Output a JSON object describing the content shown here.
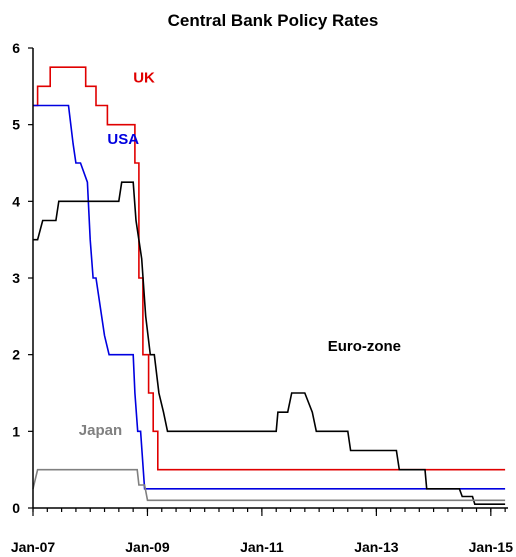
{
  "chart_data": {
    "type": "line",
    "title": "Central Bank Policy Rates",
    "xlabel": "",
    "ylabel": "",
    "xlim": [
      2007.0,
      2015.3
    ],
    "ylim": [
      0,
      6
    ],
    "x_ticks": [
      2007,
      2009,
      2011,
      2013,
      2015
    ],
    "x_tick_labels": [
      "Jan-07",
      "Jan-09",
      "Jan-11",
      "Jan-13",
      "Jan-15"
    ],
    "y_ticks": [
      0,
      1,
      2,
      3,
      4,
      5,
      6
    ],
    "y_tick_labels": [
      "0",
      "1",
      "2",
      "3",
      "4",
      "5",
      "6"
    ],
    "grid": false,
    "legend": "none (series labeled directly on chart)",
    "series": [
      {
        "name": "UK",
        "color": "#e00000",
        "points": [
          [
            2007.0,
            5.25
          ],
          [
            2007.08,
            5.25
          ],
          [
            2007.08,
            5.5
          ],
          [
            2007.3,
            5.5
          ],
          [
            2007.3,
            5.75
          ],
          [
            2007.92,
            5.75
          ],
          [
            2007.92,
            5.5
          ],
          [
            2008.1,
            5.5
          ],
          [
            2008.1,
            5.25
          ],
          [
            2008.3,
            5.25
          ],
          [
            2008.3,
            5.0
          ],
          [
            2008.78,
            5.0
          ],
          [
            2008.78,
            4.5
          ],
          [
            2008.85,
            4.5
          ],
          [
            2008.85,
            3.0
          ],
          [
            2008.92,
            3.0
          ],
          [
            2008.92,
            2.0
          ],
          [
            2009.02,
            2.0
          ],
          [
            2009.02,
            1.5
          ],
          [
            2009.1,
            1.5
          ],
          [
            2009.1,
            1.0
          ],
          [
            2009.18,
            1.0
          ],
          [
            2009.18,
            0.5
          ],
          [
            2015.25,
            0.5
          ]
        ]
      },
      {
        "name": "USA",
        "color": "#0000e0",
        "points": [
          [
            2007.0,
            5.25
          ],
          [
            2007.62,
            5.25
          ],
          [
            2007.7,
            4.75
          ],
          [
            2007.75,
            4.5
          ],
          [
            2007.83,
            4.5
          ],
          [
            2007.95,
            4.25
          ],
          [
            2008.0,
            3.5
          ],
          [
            2008.05,
            3.0
          ],
          [
            2008.1,
            3.0
          ],
          [
            2008.25,
            2.25
          ],
          [
            2008.33,
            2.0
          ],
          [
            2008.75,
            2.0
          ],
          [
            2008.78,
            1.5
          ],
          [
            2008.83,
            1.0
          ],
          [
            2008.88,
            1.0
          ],
          [
            2008.95,
            0.25
          ],
          [
            2015.25,
            0.25
          ]
        ]
      },
      {
        "name": "Euro-zone",
        "color": "#000000",
        "points": [
          [
            2007.0,
            3.5
          ],
          [
            2007.08,
            3.5
          ],
          [
            2007.17,
            3.75
          ],
          [
            2007.4,
            3.75
          ],
          [
            2007.45,
            4.0
          ],
          [
            2008.5,
            4.0
          ],
          [
            2008.55,
            4.25
          ],
          [
            2008.75,
            4.25
          ],
          [
            2008.8,
            3.75
          ],
          [
            2008.9,
            3.25
          ],
          [
            2008.97,
            2.5
          ],
          [
            2009.05,
            2.0
          ],
          [
            2009.12,
            2.0
          ],
          [
            2009.2,
            1.5
          ],
          [
            2009.28,
            1.25
          ],
          [
            2009.35,
            1.0
          ],
          [
            2011.25,
            1.0
          ],
          [
            2011.28,
            1.25
          ],
          [
            2011.45,
            1.25
          ],
          [
            2011.52,
            1.5
          ],
          [
            2011.75,
            1.5
          ],
          [
            2011.88,
            1.25
          ],
          [
            2011.95,
            1.0
          ],
          [
            2012.5,
            1.0
          ],
          [
            2012.55,
            0.75
          ],
          [
            2013.35,
            0.75
          ],
          [
            2013.4,
            0.5
          ],
          [
            2013.85,
            0.5
          ],
          [
            2013.88,
            0.25
          ],
          [
            2014.45,
            0.25
          ],
          [
            2014.5,
            0.15
          ],
          [
            2014.68,
            0.15
          ],
          [
            2014.72,
            0.05
          ],
          [
            2015.25,
            0.05
          ]
        ]
      },
      {
        "name": "Japan",
        "color": "#808080",
        "points": [
          [
            2007.0,
            0.25
          ],
          [
            2007.08,
            0.5
          ],
          [
            2008.82,
            0.5
          ],
          [
            2008.85,
            0.3
          ],
          [
            2008.95,
            0.3
          ],
          [
            2009.0,
            0.1
          ],
          [
            2015.25,
            0.1
          ]
        ]
      }
    ]
  },
  "series_labels": [
    {
      "text": "UK",
      "color": "#e00000"
    },
    {
      "text": "USA",
      "color": "#0000e0"
    },
    {
      "text": "Euro-zone",
      "color": "#000000"
    },
    {
      "text": "Japan",
      "color": "#808080"
    }
  ]
}
